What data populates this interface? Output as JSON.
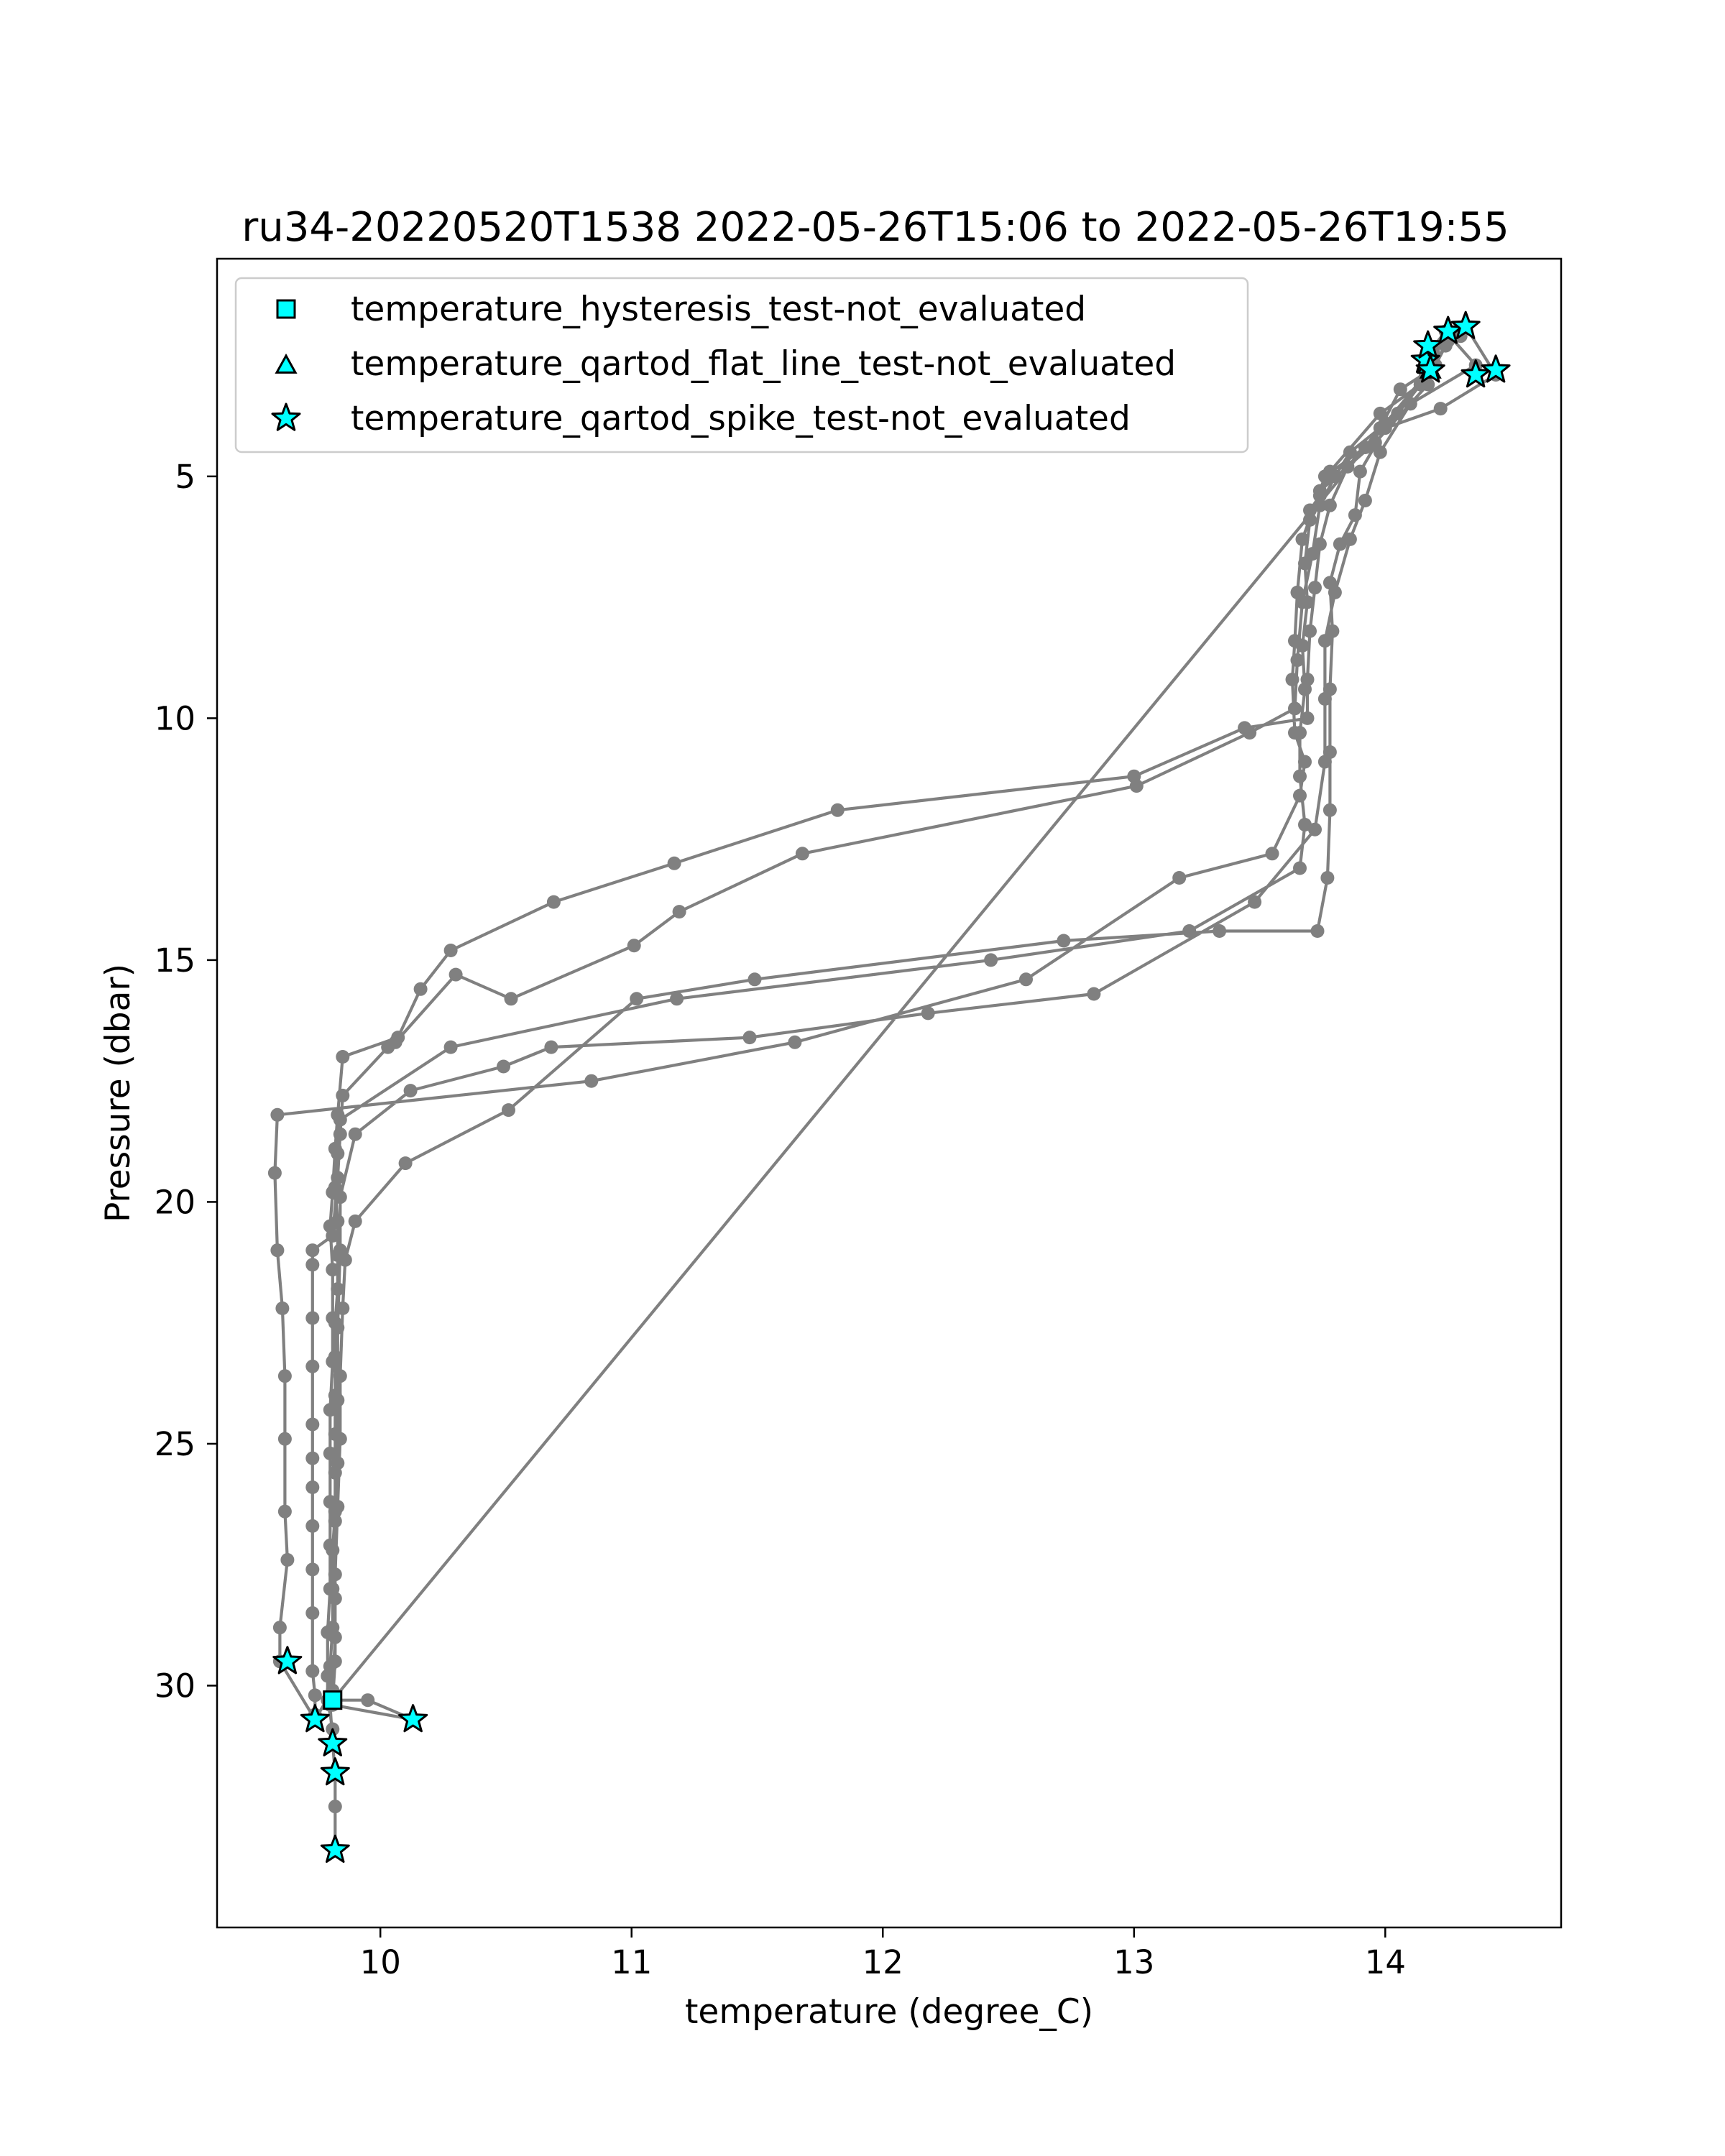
{
  "chart_data": {
    "type": "line",
    "title": "ru34-20220520T1538 2022-05-26T15:06 to 2022-05-26T19:55",
    "xlabel": "temperature (degree_C)",
    "ylabel": "Pressure (dbar)",
    "xlim": [
      9.35,
      14.7
    ],
    "ylim": [
      35.0,
      0.5
    ],
    "y_inverted": true,
    "grid": false,
    "legend_position": "upper-left",
    "x_ticks": [
      10,
      11,
      12,
      13,
      14
    ],
    "y_ticks": [
      5,
      10,
      15,
      20,
      25,
      30
    ],
    "x_tick_labels": [
      "10",
      "11",
      "12",
      "13",
      "14"
    ],
    "y_tick_labels": [
      "5",
      "10",
      "15",
      "20",
      "25",
      "30"
    ],
    "line_color": "#808080",
    "marker_color": "#00ffff",
    "profile": [
      [
        9.82,
        33.4
      ],
      [
        9.82,
        32.5
      ],
      [
        9.82,
        31.8
      ],
      [
        9.81,
        31.2
      ],
      [
        9.8,
        30.4
      ],
      [
        9.8,
        29.6
      ],
      [
        9.81,
        28.8
      ],
      [
        9.81,
        28.0
      ],
      [
        9.81,
        27.2
      ],
      [
        9.82,
        26.4
      ],
      [
        9.82,
        25.6
      ],
      [
        9.82,
        24.8
      ],
      [
        9.82,
        24.0
      ],
      [
        9.82,
        23.2
      ],
      [
        9.82,
        22.5
      ],
      [
        9.83,
        21.8
      ],
      [
        9.83,
        21.1
      ],
      [
        9.83,
        20.4
      ],
      [
        9.82,
        19.7
      ],
      [
        9.83,
        19.0
      ],
      [
        9.84,
        18.3
      ],
      [
        10.28,
        16.8
      ],
      [
        11.18,
        15.8
      ],
      [
        12.43,
        15.0
      ],
      [
        13.22,
        14.4
      ],
      [
        13.66,
        13.1
      ],
      [
        13.68,
        12.2
      ],
      [
        13.66,
        11.2
      ],
      [
        13.66,
        10.3
      ],
      [
        13.68,
        9.4
      ],
      [
        13.67,
        8.5
      ],
      [
        13.69,
        7.6
      ],
      [
        13.68,
        6.8
      ],
      [
        13.7,
        5.9
      ],
      [
        13.76,
        5.0
      ],
      [
        13.92,
        4.4
      ],
      [
        14.05,
        3.7
      ],
      [
        14.14,
        3.1
      ],
      [
        14.19,
        2.7
      ],
      [
        14.24,
        2.3
      ],
      [
        14.3,
        2.1
      ],
      [
        14.32,
        1.9
      ],
      [
        14.44,
        2.9
      ],
      [
        14.22,
        3.6
      ],
      [
        14.0,
        4.0
      ],
      [
        13.9,
        4.9
      ],
      [
        13.88,
        5.8
      ],
      [
        13.82,
        6.4
      ],
      [
        13.78,
        7.2
      ],
      [
        13.79,
        8.2
      ],
      [
        13.78,
        9.4
      ],
      [
        13.78,
        10.7
      ],
      [
        13.78,
        11.9
      ],
      [
        13.77,
        13.3
      ],
      [
        13.73,
        14.4
      ],
      [
        13.34,
        14.4
      ],
      [
        12.72,
        14.6
      ],
      [
        11.49,
        15.4
      ],
      [
        11.02,
        15.8
      ],
      [
        10.51,
        18.1
      ],
      [
        10.1,
        19.2
      ],
      [
        9.9,
        20.4
      ],
      [
        9.86,
        21.2
      ],
      [
        9.85,
        22.2
      ],
      [
        9.84,
        23.6
      ],
      [
        9.84,
        24.9
      ],
      [
        9.83,
        26.3
      ],
      [
        9.82,
        27.7
      ],
      [
        9.82,
        29.0
      ],
      [
        9.81,
        30.1
      ],
      [
        9.74,
        30.7
      ],
      [
        9.6,
        29.5
      ],
      [
        9.6,
        28.8
      ],
      [
        9.63,
        27.4
      ],
      [
        9.62,
        26.4
      ],
      [
        9.62,
        24.9
      ],
      [
        9.62,
        23.6
      ],
      [
        9.61,
        22.2
      ],
      [
        9.59,
        21.0
      ],
      [
        9.58,
        19.4
      ],
      [
        9.59,
        18.2
      ],
      [
        10.84,
        17.5
      ],
      [
        11.65,
        16.7
      ],
      [
        12.57,
        15.4
      ],
      [
        13.18,
        13.3
      ],
      [
        13.55,
        12.8
      ],
      [
        13.66,
        11.6
      ],
      [
        13.68,
        10.9
      ],
      [
        13.64,
        10.3
      ],
      [
        13.63,
        9.2
      ],
      [
        13.64,
        8.4
      ],
      [
        13.65,
        7.4
      ],
      [
        13.67,
        6.3
      ],
      [
        13.74,
        5.3
      ],
      [
        13.96,
        4.3
      ],
      [
        14.17,
        3.1
      ],
      [
        14.18,
        2.4
      ],
      [
        14.24,
        2.0
      ],
      [
        14.36,
        2.7
      ],
      [
        14.1,
        3.5
      ],
      [
        13.98,
        4.5
      ],
      [
        13.92,
        5.5
      ],
      [
        13.86,
        6.3
      ],
      [
        13.8,
        7.4
      ],
      [
        13.76,
        8.4
      ],
      [
        13.76,
        9.6
      ],
      [
        13.76,
        10.9
      ],
      [
        13.72,
        12.3
      ],
      [
        13.48,
        13.8
      ],
      [
        12.84,
        15.7
      ],
      [
        12.18,
        16.1
      ],
      [
        11.47,
        16.6
      ],
      [
        10.68,
        16.8
      ],
      [
        10.49,
        17.2
      ],
      [
        10.12,
        17.7
      ],
      [
        9.9,
        18.6
      ],
      [
        9.84,
        19.9
      ],
      [
        9.84,
        21.0
      ],
      [
        9.83,
        22.6
      ],
      [
        9.83,
        24.1
      ],
      [
        9.83,
        25.4
      ],
      [
        9.82,
        26.6
      ],
      [
        9.82,
        28.2
      ],
      [
        9.82,
        29.5
      ],
      [
        9.81,
        30.3
      ],
      [
        9.81,
        30.4
      ],
      [
        10.13,
        30.7
      ],
      [
        9.95,
        30.3
      ],
      [
        9.81,
        30.3
      ],
      [
        14.16,
        2.9
      ],
      [
        14.19,
        2.4
      ],
      [
        14.25,
        2.2
      ],
      [
        14.2,
        2.7
      ],
      [
        14.0,
        3.9
      ],
      [
        13.85,
        4.8
      ],
      [
        13.78,
        5.6
      ],
      [
        13.74,
        6.4
      ],
      [
        13.72,
        7.3
      ],
      [
        13.7,
        8.2
      ],
      [
        13.69,
        9.2
      ],
      [
        13.69,
        10.0
      ],
      [
        13.44,
        10.2
      ],
      [
        13.0,
        11.2
      ],
      [
        11.82,
        11.9
      ],
      [
        11.17,
        13.0
      ],
      [
        10.69,
        13.8
      ],
      [
        10.28,
        14.8
      ],
      [
        10.16,
        15.6
      ],
      [
        10.07,
        16.6
      ],
      [
        9.85,
        17.0
      ],
      [
        9.83,
        18.2
      ],
      [
        9.82,
        18.9
      ],
      [
        9.81,
        19.8
      ],
      [
        9.8,
        20.5
      ],
      [
        9.81,
        21.4
      ],
      [
        9.81,
        22.4
      ],
      [
        9.81,
        23.3
      ],
      [
        9.8,
        24.3
      ],
      [
        9.8,
        25.2
      ],
      [
        9.8,
        26.2
      ],
      [
        9.8,
        27.1
      ],
      [
        9.8,
        28.0
      ],
      [
        9.79,
        28.9
      ],
      [
        9.79,
        29.8
      ],
      [
        9.79,
        30.3
      ],
      [
        9.81,
        30.9
      ],
      [
        9.81,
        31.2
      ]
    ],
    "profile2": [
      [
        13.7,
        5.7
      ],
      [
        13.74,
        5.4
      ],
      [
        13.78,
        4.9
      ],
      [
        13.98,
        3.7
      ],
      [
        14.14,
        3.1
      ],
      [
        14.17,
        2.8
      ],
      [
        14.18,
        2.8
      ],
      [
        14.06,
        3.2
      ],
      [
        13.98,
        4.0
      ],
      [
        13.86,
        4.5
      ],
      [
        13.8,
        5.0
      ],
      [
        13.74,
        5.6
      ],
      [
        13.71,
        6.6
      ],
      [
        13.67,
        7.6
      ],
      [
        13.65,
        8.8
      ],
      [
        13.64,
        9.8
      ],
      [
        13.46,
        10.3
      ],
      [
        13.01,
        11.4
      ],
      [
        11.68,
        12.8
      ],
      [
        11.19,
        14.0
      ],
      [
        11.01,
        14.7
      ],
      [
        10.52,
        15.8
      ],
      [
        10.3,
        15.3
      ],
      [
        10.06,
        16.7
      ],
      [
        10.03,
        16.8
      ],
      [
        9.85,
        17.8
      ],
      [
        9.84,
        18.6
      ],
      [
        9.83,
        19.5
      ],
      [
        9.81,
        20.7
      ],
      [
        9.73,
        21.0
      ],
      [
        9.73,
        21.3
      ],
      [
        9.73,
        22.4
      ],
      [
        9.73,
        23.4
      ],
      [
        9.73,
        24.6
      ],
      [
        9.73,
        25.3
      ],
      [
        9.73,
        25.9
      ],
      [
        9.73,
        26.7
      ],
      [
        9.73,
        27.6
      ],
      [
        9.73,
        28.5
      ],
      [
        9.73,
        29.7
      ],
      [
        9.74,
        30.2
      ],
      [
        9.74,
        30.6
      ]
    ],
    "hysteresis_points": [
      [
        9.81,
        30.3
      ]
    ],
    "flat_line_points": [
      [
        14.18,
        2.8
      ],
      [
        14.17,
        2.7
      ]
    ],
    "spike_points": [
      [
        9.82,
        33.4
      ],
      [
        9.82,
        31.8
      ],
      [
        9.81,
        31.2
      ],
      [
        10.13,
        30.7
      ],
      [
        9.74,
        30.7
      ],
      [
        9.63,
        29.5
      ],
      [
        14.16,
        2.6
      ],
      [
        14.17,
        2.3
      ],
      [
        14.25,
        2.0
      ],
      [
        14.32,
        1.9
      ],
      [
        14.36,
        2.9
      ],
      [
        14.44,
        2.8
      ],
      [
        14.18,
        2.8
      ]
    ],
    "legend": [
      {
        "label": "temperature_hysteresis_test-not_evaluated",
        "marker": "square"
      },
      {
        "label": "temperature_qartod_flat_line_test-not_evaluated",
        "marker": "triangle"
      },
      {
        "label": "temperature_qartod_spike_test-not_evaluated",
        "marker": "star"
      }
    ]
  }
}
